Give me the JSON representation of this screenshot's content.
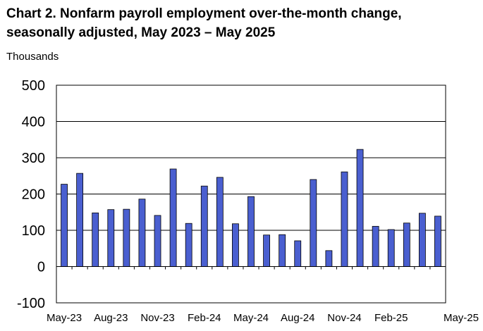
{
  "title": {
    "line1": "Chart 2. Nonfarm payroll employment over-the-month change,",
    "line2": "seasonally adjusted, May 2023 – May 2025"
  },
  "chart_data": {
    "type": "bar",
    "title": "Chart 2. Nonfarm payroll employment over-the-month change, seasonally adjusted, May 2023 – May 2025",
    "ylabel": "Thousands",
    "xlabel": "",
    "ylim": [
      -100,
      500
    ],
    "yticks": [
      -100,
      0,
      100,
      200,
      300,
      400,
      500
    ],
    "ytick_labels": [
      "-100",
      "0",
      "100",
      "200",
      "300",
      "400",
      "500"
    ],
    "grid": true,
    "bar_color": "#4a5fd0",
    "categories": [
      "May-23",
      "Jun-23",
      "Jul-23",
      "Aug-23",
      "Sep-23",
      "Oct-23",
      "Nov-23",
      "Dec-23",
      "Jan-24",
      "Feb-24",
      "Mar-24",
      "Apr-24",
      "May-24",
      "Jun-24",
      "Jul-24",
      "Aug-24",
      "Sep-24",
      "Oct-24",
      "Nov-24",
      "Dec-24",
      "Jan-25",
      "Feb-25",
      "Mar-25",
      "Apr-25",
      "May-25"
    ],
    "values": [
      227,
      257,
      148,
      157,
      158,
      186,
      141,
      269,
      119,
      222,
      246,
      118,
      193,
      87,
      88,
      71,
      240,
      44,
      261,
      323,
      111,
      102,
      120,
      147,
      139
    ],
    "xtick_labels": [
      "May-23",
      "Aug-23",
      "Nov-23",
      "Feb-24",
      "May-24",
      "Aug-24",
      "Nov-24",
      "Feb-25",
      "May-25"
    ],
    "xtick_indices": [
      0,
      3,
      6,
      9,
      12,
      15,
      18,
      21,
      24
    ]
  }
}
